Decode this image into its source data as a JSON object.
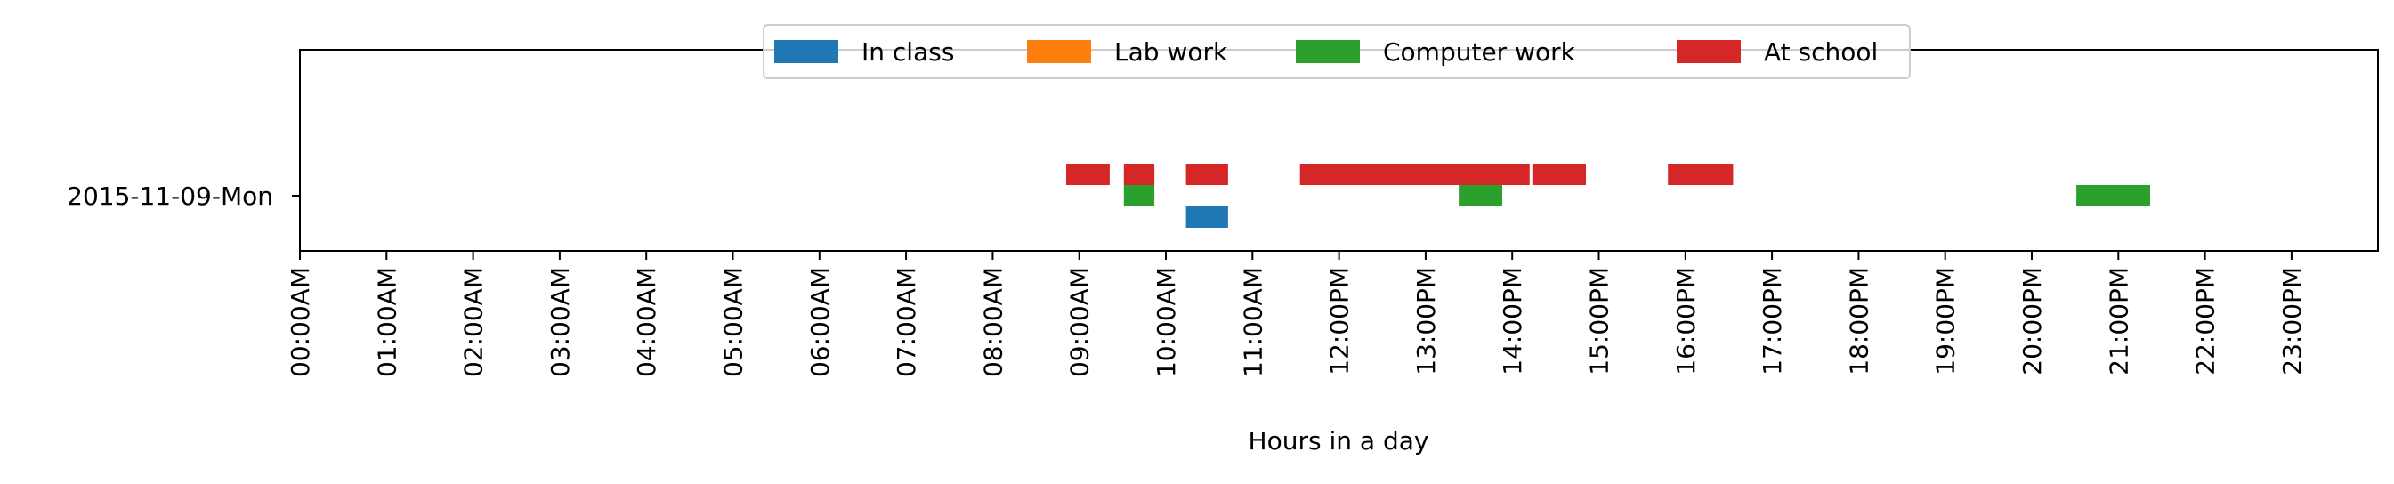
{
  "chart_data": {
    "type": "timeline",
    "xlabel": "Hours in a day",
    "ylabel": "",
    "xlim_hours": [
      0,
      24
    ],
    "rows": [
      {
        "label": "2015-11-09-Mon"
      }
    ],
    "x_ticks": [
      "00:00AM",
      "01:00AM",
      "02:00AM",
      "03:00AM",
      "04:00AM",
      "05:00AM",
      "06:00AM",
      "07:00AM",
      "08:00AM",
      "09:00AM",
      "10:00AM",
      "11:00AM",
      "12:00PM",
      "13:00PM",
      "14:00PM",
      "15:00PM",
      "16:00PM",
      "17:00PM",
      "18:00PM",
      "19:00PM",
      "20:00PM",
      "21:00PM",
      "22:00PM",
      "23:00PM"
    ],
    "legend_position": "top-center",
    "series": [
      {
        "name": "In class",
        "color": "#1f77b4",
        "lane_offset": -1,
        "intervals": [
          {
            "start": "10:13",
            "end": "10:44"
          }
        ]
      },
      {
        "name": "Lab work",
        "color": "#ff7f0e",
        "lane_offset": 0,
        "intervals": []
      },
      {
        "name": "Computer work",
        "color": "#2ca02c",
        "lane_offset": 0,
        "intervals": [
          {
            "start": "09:30",
            "end": "09:53"
          },
          {
            "start": "13:22",
            "end": "13:54"
          },
          {
            "start": "20:30",
            "end": "21:23"
          }
        ]
      },
      {
        "name": "At school",
        "color": "#d62728",
        "lane_offset": 1,
        "intervals": [
          {
            "start": "08:50",
            "end": "09:22"
          },
          {
            "start": "09:30",
            "end": "09:53"
          },
          {
            "start": "10:13",
            "end": "10:44"
          },
          {
            "start": "11:32",
            "end": "14:13"
          },
          {
            "start": "14:13",
            "end": "14:52"
          },
          {
            "start": "15:47",
            "end": "16:34"
          }
        ]
      }
    ]
  }
}
